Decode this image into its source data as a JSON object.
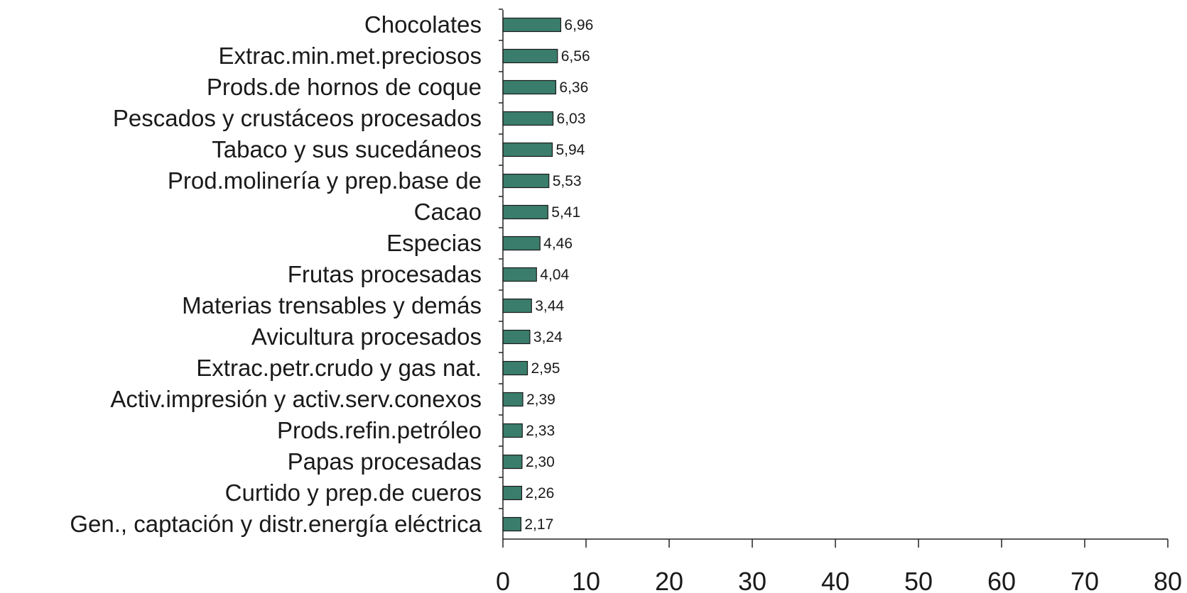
{
  "chart_data": {
    "type": "bar",
    "orientation": "horizontal",
    "title": "",
    "xlabel": "",
    "ylabel": "",
    "xlim": [
      0,
      80
    ],
    "x_ticks": [
      0,
      10,
      20,
      30,
      40,
      50,
      60,
      70,
      80
    ],
    "grid": false,
    "legend": "none",
    "bar_color": "#3a7d6c",
    "categories": [
      "Chocolates",
      "Extrac.min.met.preciosos",
      "Prods.de hornos de coque",
      "Pescados y crustáceos procesados",
      "Tabaco y sus sucedáneos",
      "Prod.molinería y prep.base de",
      "Cacao",
      "Especias",
      "Frutas procesadas",
      "Materias trensables y demás",
      "Avicultura procesados",
      "Extrac.petr.crudo y gas nat.",
      "Activ.impresión y activ.serv.conexos",
      "Prods.refin.petróleo",
      "Papas procesadas",
      "Curtido y prep.de cueros",
      "Gen., captación y distr.energía eléctrica"
    ],
    "values": [
      6.96,
      6.56,
      6.36,
      6.03,
      5.94,
      5.53,
      5.41,
      4.46,
      4.04,
      3.44,
      3.24,
      2.95,
      2.39,
      2.33,
      2.3,
      2.26,
      2.17
    ],
    "value_labels": [
      "6,96",
      "6,56",
      "6,36",
      "6,03",
      "5,94",
      "5,53",
      "5,41",
      "4,46",
      "4,04",
      "3,44",
      "3,24",
      "2,95",
      "2,39",
      "2,33",
      "2,30",
      "2,26",
      "2,17"
    ]
  }
}
